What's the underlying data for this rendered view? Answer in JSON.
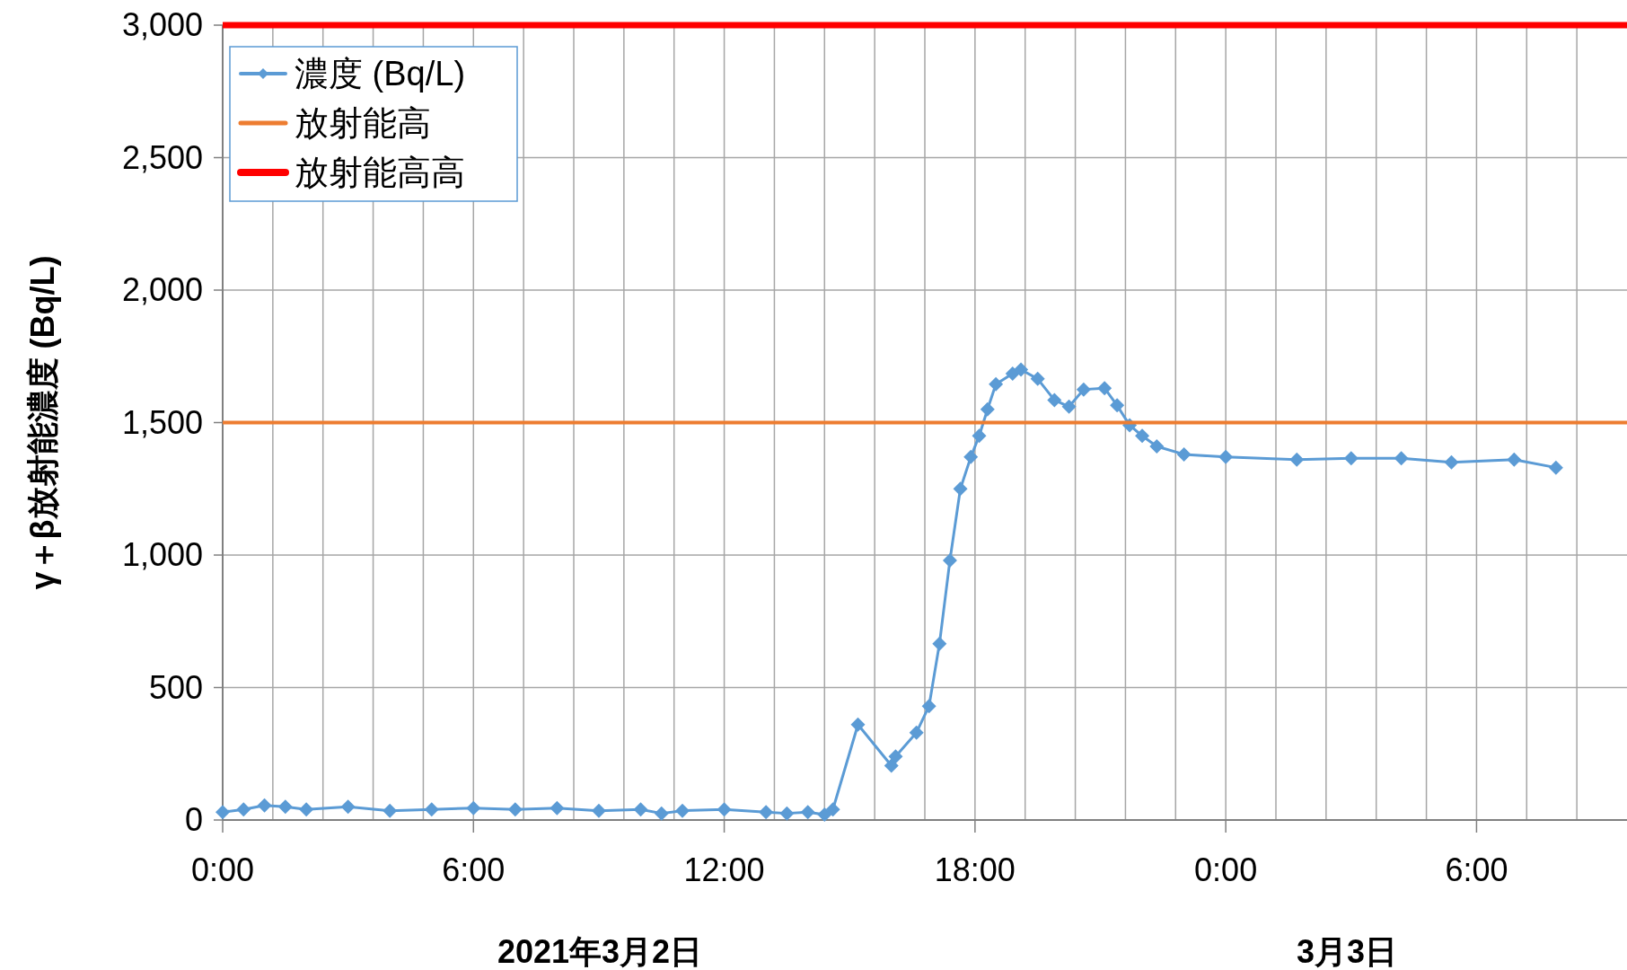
{
  "chart_data": {
    "type": "line",
    "ylabel": "γ＋β放射能濃度 (Bq/L)",
    "annotations": [
      "2021年3月2日",
      "3月3日"
    ],
    "xlim": [
      "2021-03-02T00:00",
      "2021-03-03T09:36"
    ],
    "xticks": [
      {
        "value": "2021-03-02T00:00",
        "label": "0:00"
      },
      {
        "value": "2021-03-02T01:12",
        "label": null
      },
      {
        "value": "2021-03-02T02:24",
        "label": null
      },
      {
        "value": "2021-03-02T03:36",
        "label": null
      },
      {
        "value": "2021-03-02T04:48",
        "label": null
      },
      {
        "value": "2021-03-02T06:00",
        "label": "6:00"
      },
      {
        "value": "2021-03-02T07:12",
        "label": null
      },
      {
        "value": "2021-03-02T08:24",
        "label": null
      },
      {
        "value": "2021-03-02T09:36",
        "label": null
      },
      {
        "value": "2021-03-02T10:48",
        "label": null
      },
      {
        "value": "2021-03-02T12:00",
        "label": "12:00"
      },
      {
        "value": "2021-03-02T13:12",
        "label": null
      },
      {
        "value": "2021-03-02T14:24",
        "label": null
      },
      {
        "value": "2021-03-02T15:36",
        "label": null
      },
      {
        "value": "2021-03-02T16:48",
        "label": null
      },
      {
        "value": "2021-03-02T18:00",
        "label": "18:00"
      },
      {
        "value": "2021-03-02T19:12",
        "label": null
      },
      {
        "value": "2021-03-02T20:24",
        "label": null
      },
      {
        "value": "2021-03-02T21:36",
        "label": null
      },
      {
        "value": "2021-03-02T22:48",
        "label": null
      },
      {
        "value": "2021-03-03T00:00",
        "label": "0:00"
      },
      {
        "value": "2021-03-03T01:12",
        "label": null
      },
      {
        "value": "2021-03-03T02:24",
        "label": null
      },
      {
        "value": "2021-03-03T03:36",
        "label": null
      },
      {
        "value": "2021-03-03T04:48",
        "label": null
      },
      {
        "value": "2021-03-03T06:00",
        "label": "6:00"
      },
      {
        "value": "2021-03-03T07:12",
        "label": null
      },
      {
        "value": "2021-03-03T08:24",
        "label": null
      }
    ],
    "ylim": [
      0,
      3000
    ],
    "yticks": [
      {
        "value": 0,
        "label": "0"
      },
      {
        "value": 500,
        "label": "500"
      },
      {
        "value": 1000,
        "label": "1,000"
      },
      {
        "value": 1500,
        "label": "1,500"
      },
      {
        "value": 2000,
        "label": "2,000"
      },
      {
        "value": 2500,
        "label": "2,500"
      },
      {
        "value": 3000,
        "label": "3,000"
      }
    ],
    "grid": true,
    "legend": "top left",
    "series": [
      {
        "name": "濃度 (Bq/L)",
        "color": "#5b9bd5",
        "marker": "diamond",
        "x": [
          "2021-03-02T00:00",
          "2021-03-02T00:30",
          "2021-03-02T01:00",
          "2021-03-02T01:30",
          "2021-03-02T02:00",
          "2021-03-02T03:00",
          "2021-03-02T04:00",
          "2021-03-02T05:00",
          "2021-03-02T06:00",
          "2021-03-02T07:00",
          "2021-03-02T08:00",
          "2021-03-02T09:00",
          "2021-03-02T10:00",
          "2021-03-02T10:30",
          "2021-03-02T11:00",
          "2021-03-02T12:00",
          "2021-03-02T13:00",
          "2021-03-02T13:30",
          "2021-03-02T14:00",
          "2021-03-02T14:24",
          "2021-03-02T14:36",
          "2021-03-02T15:12",
          "2021-03-02T16:00",
          "2021-03-02T16:06",
          "2021-03-02T16:36",
          "2021-03-02T16:54",
          "2021-03-02T17:09",
          "2021-03-02T17:24",
          "2021-03-02T17:39",
          "2021-03-02T17:54",
          "2021-03-02T18:06",
          "2021-03-02T18:18",
          "2021-03-02T18:30",
          "2021-03-02T18:54",
          "2021-03-02T19:06",
          "2021-03-02T19:30",
          "2021-03-02T19:54",
          "2021-03-02T20:15",
          "2021-03-02T20:36",
          "2021-03-02T21:06",
          "2021-03-02T21:24",
          "2021-03-02T21:42",
          "2021-03-02T22:00",
          "2021-03-02T22:21",
          "2021-03-02T23:00",
          "2021-03-03T00:00",
          "2021-03-03T01:42",
          "2021-03-03T03:00",
          "2021-03-03T04:12",
          "2021-03-03T05:24",
          "2021-03-03T06:54",
          "2021-03-03T07:54"
        ],
        "values": [
          30,
          40,
          55,
          50,
          40,
          50,
          35,
          40,
          45,
          40,
          45,
          35,
          40,
          25,
          35,
          40,
          30,
          25,
          30,
          20,
          40,
          360,
          205,
          240,
          330,
          430,
          665,
          980,
          1250,
          1370,
          1450,
          1550,
          1645,
          1685,
          1700,
          1665,
          1585,
          1560,
          1625,
          1630,
          1565,
          1490,
          1450,
          1410,
          1380,
          1370,
          1360,
          1365,
          1365,
          1350,
          1360,
          1330
        ]
      },
      {
        "name": "放射能高",
        "color": "#ed7d31",
        "marker": "none",
        "x": [
          "2021-03-02T00:00",
          "2021-03-03T09:36"
        ],
        "values": [
          1500,
          1500
        ]
      },
      {
        "name": "放射能高高",
        "color": "#ff0000",
        "marker": "none",
        "x": [
          "2021-03-02T00:00",
          "2021-03-03T09:36"
        ],
        "values": [
          3000,
          3000
        ]
      }
    ]
  }
}
